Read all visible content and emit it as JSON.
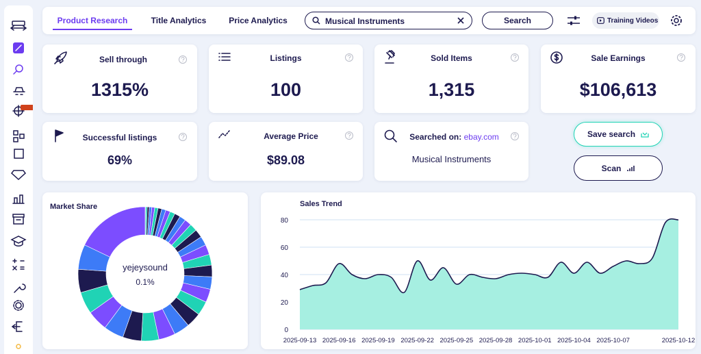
{
  "nav": {
    "tabs": [
      "Product Research",
      "Title Analytics",
      "Price Analytics"
    ],
    "active_tab": 0,
    "search_query": "Musical Instruments",
    "search_button": "Search",
    "training_videos": "Training Videos"
  },
  "stats": [
    {
      "label": "Sell through",
      "value": "1315%"
    },
    {
      "label": "Listings",
      "value": "100"
    },
    {
      "label": "Sold Items",
      "value": "1,315"
    },
    {
      "label": "Sale Earnings",
      "value": "$106,613"
    },
    {
      "label": "Successful listings",
      "value": "69%"
    },
    {
      "label": "Average Price",
      "value": "$89.08"
    }
  ],
  "searched_on": {
    "label": "Searched on:",
    "site": "ebay.com",
    "query": "Musical Instruments"
  },
  "actions": {
    "save_search": "Save search",
    "scan": "Scan"
  },
  "chart_data": [
    {
      "type": "pie",
      "title": "Market Share",
      "donut": true,
      "highlight": 0,
      "categories": [
        "yejeysound",
        null,
        null,
        null,
        null,
        null,
        null,
        null,
        null,
        null,
        null,
        null,
        null,
        null,
        null,
        null,
        null,
        null,
        null,
        null,
        null,
        null,
        null,
        null,
        null,
        null,
        null,
        null,
        null,
        null,
        null,
        null,
        null
      ],
      "values": [
        0.1,
        0.4,
        0.5,
        0.6,
        0.7,
        0.8,
        0.9,
        1.0,
        1.1,
        1.2,
        1.4,
        1.5,
        1.7,
        1.8,
        2.0,
        2.2,
        2.4,
        2.6,
        2.8,
        3.0,
        3.2,
        3.4,
        3.6,
        3.8,
        4.0,
        4.2,
        4.5,
        4.8,
        5.0,
        5.3,
        5.6,
        6.0,
        17.9
      ],
      "value_labels": [
        "0.1%",
        null,
        null,
        null,
        null,
        null,
        null,
        null,
        null,
        null,
        null,
        null,
        null,
        null,
        null,
        null,
        null,
        null,
        null,
        null,
        null,
        null,
        null,
        null,
        null,
        null,
        null,
        null,
        null,
        null,
        null,
        null,
        null
      ],
      "palette": [
        "#7c4dff",
        "#20d3b5",
        "#1d1a4f",
        "#3d7bf7"
      ]
    },
    {
      "type": "area",
      "title": "Sales Trend",
      "x": [
        "2025-09-13",
        "2025-09-14",
        "2025-09-15",
        "2025-09-16",
        "2025-09-17",
        "2025-09-18",
        "2025-09-19",
        "2025-09-20",
        "2025-09-21",
        "2025-09-22",
        "2025-09-23",
        "2025-09-24",
        "2025-09-25",
        "2025-09-26",
        "2025-09-27",
        "2025-09-28",
        "2025-09-29",
        "2025-09-30",
        "2025-10-01",
        "2025-10-02",
        "2025-10-03",
        "2025-10-04",
        "2025-10-05",
        "2025-10-06",
        "2025-10-07",
        "2025-10-08",
        "2025-10-09",
        "2025-10-10",
        "2025-10-11",
        "2025-10-12"
      ],
      "values": [
        29,
        32,
        34,
        48,
        40,
        37,
        40,
        38,
        27,
        50,
        36,
        45,
        33,
        40,
        38,
        37,
        40,
        41,
        40,
        38,
        49,
        41,
        49,
        41,
        46,
        50,
        48,
        52,
        78,
        80
      ],
      "xlim": [
        "2025-09-13",
        "2025-10-12"
      ],
      "xticks": [
        "2025-09-13",
        "2025-09-16",
        "2025-09-19",
        "2025-09-22",
        "2025-09-25",
        "2025-09-28",
        "2025-10-01",
        "2025-10-04",
        "2025-10-07",
        "2025-10-12"
      ],
      "ylim": [
        0,
        80
      ],
      "yticks": [
        0,
        20,
        40,
        60,
        80
      ],
      "grid": true,
      "color": "#a6efe1",
      "line_color": "#1d1a4f"
    }
  ]
}
